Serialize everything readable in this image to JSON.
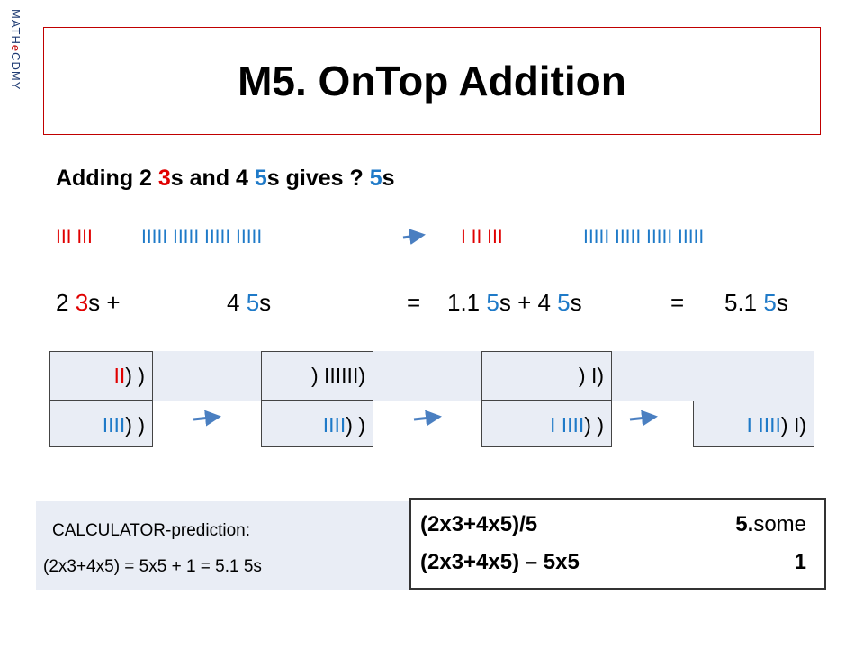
{
  "brand": [
    {
      "t": "MATH",
      "c": "#1f3b73"
    },
    {
      "t": "e",
      "c": "#c00000"
    },
    {
      "t": "CDMY",
      "c": "#1f3b73"
    }
  ],
  "title": "M5. OnTop Addition",
  "question": [
    {
      "t": "Adding 2 ",
      "c": "#000000"
    },
    {
      "t": "3",
      "c": "#e00000"
    },
    {
      "t": "s and 4 ",
      "c": "#000000"
    },
    {
      "t": "5",
      "c": "#1f7ac8"
    },
    {
      "t": "s gives ? ",
      "c": "#000000"
    },
    {
      "t": "5",
      "c": "#1f7ac8"
    },
    {
      "t": "s",
      "c": "#000000"
    }
  ],
  "tallies": {
    "left_red": [
      {
        "t": "III III",
        "c": "#e00000"
      }
    ],
    "left_blue": [
      {
        "t": "IIIII IIIII IIIII IIIII",
        "c": "#1f7ac8"
      }
    ],
    "right_red": [
      {
        "t": "I II III",
        "c": "#e00000"
      }
    ],
    "right_blue": [
      {
        "t": "IIIII IIIII IIIII IIIII",
        "c": "#1f7ac8"
      }
    ]
  },
  "equation": {
    "a": [
      {
        "t": "2 ",
        "c": "#000000"
      },
      {
        "t": "3",
        "c": "#e00000"
      },
      {
        "t": "s +",
        "c": "#000000"
      }
    ],
    "b": [
      {
        "t": "4 ",
        "c": "#000000"
      },
      {
        "t": "5",
        "c": "#1f7ac8"
      },
      {
        "t": "s",
        "c": "#000000"
      }
    ],
    "eq1": [
      {
        "t": "=",
        "c": "#000000"
      }
    ],
    "c": [
      {
        "t": "1.1 ",
        "c": "#000000"
      },
      {
        "t": "5",
        "c": "#1f7ac8"
      },
      {
        "t": "s + 4 ",
        "c": "#000000"
      },
      {
        "t": "5",
        "c": "#1f7ac8"
      },
      {
        "t": "s",
        "c": "#000000"
      }
    ],
    "eq2": [
      {
        "t": "=",
        "c": "#000000"
      }
    ],
    "d": [
      {
        "t": "5.1 ",
        "c": "#000000"
      },
      {
        "t": "5",
        "c": "#1f7ac8"
      },
      {
        "t": "s",
        "c": "#000000"
      }
    ]
  },
  "boxes": [
    {
      "top": [
        {
          "t": "II",
          "c": "#e00000"
        },
        {
          "t": ")  )",
          "c": "#000000"
        }
      ],
      "bottom": [
        {
          "t": "IIII",
          "c": "#1f7ac8"
        },
        {
          "t": ")  )",
          "c": "#000000"
        }
      ]
    },
    {
      "top": [
        {
          "t": ") IIIIII)",
          "c": "#000000"
        }
      ],
      "bottom": [
        {
          "t": "IIII",
          "c": "#1f7ac8"
        },
        {
          "t": ")  )",
          "c": "#000000"
        }
      ]
    },
    {
      "top": [
        {
          "t": ")  I)",
          "c": "#000000"
        }
      ],
      "bottom": [
        {
          "t": "I IIII",
          "c": "#1f7ac8"
        },
        {
          "t": ")  )",
          "c": "#000000"
        }
      ]
    },
    {
      "bottom": [
        {
          "t": "I IIII",
          "c": "#1f7ac8"
        },
        {
          "t": ")  I)",
          "c": "#000000"
        }
      ]
    }
  ],
  "calculator": {
    "label": "CALCULATOR-prediction:",
    "line": "(2x3+4x5) = 5x5 + 1 = 5.1 5s"
  },
  "results": [
    {
      "expr": "(2x3+4x5)/5",
      "value": [
        {
          "t": "5.",
          "c": "#000000",
          "b": true
        },
        {
          "t": "some",
          "c": "#000000",
          "b": false
        }
      ]
    },
    {
      "expr": "(2x3+4x5) – 5x5",
      "value": [
        {
          "t": "1",
          "c": "#000000",
          "b": true
        }
      ]
    }
  ]
}
